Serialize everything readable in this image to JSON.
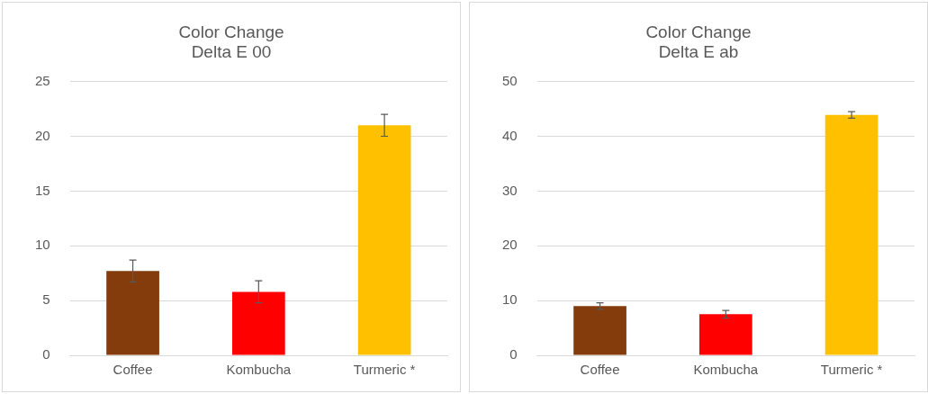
{
  "chart_data": [
    {
      "type": "bar",
      "title": [
        "Color Change",
        "Delta E 00"
      ],
      "categories": [
        "Coffee",
        "Kombucha",
        "Turmeric *"
      ],
      "values": [
        7.7,
        5.8,
        21.0
      ],
      "colors": [
        "#843c0c",
        "#ff0000",
        "#ffc000"
      ],
      "errors": [
        1.0,
        1.0,
        1.0
      ],
      "ylim": [
        0,
        25
      ],
      "yticks": [
        0,
        5,
        10,
        15,
        20,
        25
      ],
      "grid": "y",
      "legend": false
    },
    {
      "type": "bar",
      "title": [
        "Color Change",
        "Delta E ab"
      ],
      "categories": [
        "Coffee",
        "Kombucha",
        "Turmeric *"
      ],
      "values": [
        9.0,
        7.5,
        43.9
      ],
      "colors": [
        "#843c0c",
        "#ff0000",
        "#ffc000"
      ],
      "errors": [
        0.6,
        0.7,
        0.6
      ],
      "ylim": [
        0,
        50
      ],
      "yticks": [
        0,
        10,
        20,
        30,
        40,
        50
      ],
      "grid": "y",
      "legend": false
    }
  ]
}
